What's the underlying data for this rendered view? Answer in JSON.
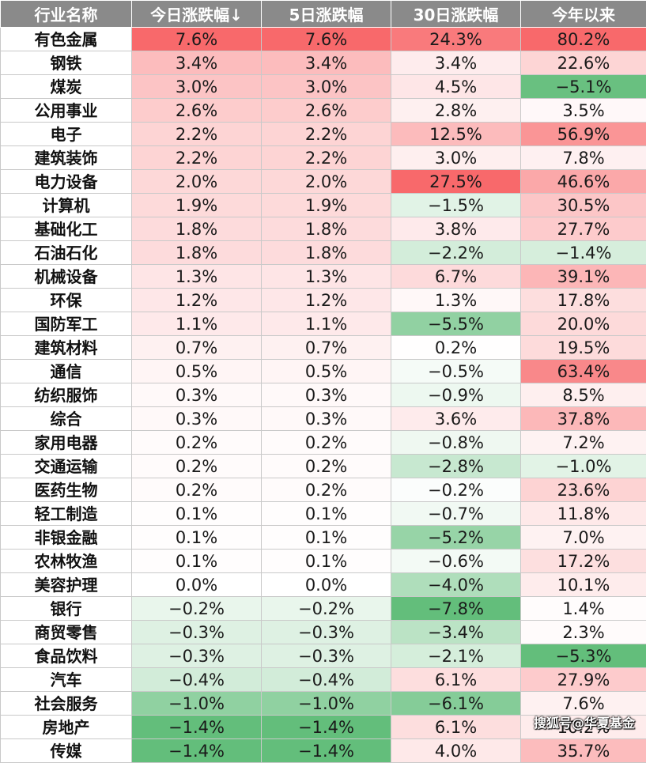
{
  "columns": [
    "行业名称",
    "今日涨跌幅↓",
    "5日涨跌幅",
    "30日涨跌幅",
    "今年以来"
  ],
  "rows": [
    [
      "有色金属",
      "7.6%",
      "7.6%",
      "24.3%",
      "80.2%"
    ],
    [
      "钢铁",
      "3.4%",
      "3.4%",
      "3.4%",
      "22.6%"
    ],
    [
      "煤炭",
      "3.0%",
      "3.0%",
      "4.5%",
      "−5.1%"
    ],
    [
      "公用事业",
      "2.6%",
      "2.6%",
      "2.8%",
      "3.5%"
    ],
    [
      "电子",
      "2.2%",
      "2.2%",
      "12.5%",
      "56.9%"
    ],
    [
      "建筑装饰",
      "2.2%",
      "2.2%",
      "3.0%",
      "7.8%"
    ],
    [
      "电力设备",
      "2.0%",
      "2.0%",
      "27.5%",
      "46.6%"
    ],
    [
      "计算机",
      "1.9%",
      "1.9%",
      "−1.5%",
      "30.5%"
    ],
    [
      "基础化工",
      "1.8%",
      "1.8%",
      "3.8%",
      "27.7%"
    ],
    [
      "石油石化",
      "1.8%",
      "1.8%",
      "−2.2%",
      "−1.4%"
    ],
    [
      "机械设备",
      "1.3%",
      "1.3%",
      "6.7%",
      "39.1%"
    ],
    [
      "环保",
      "1.2%",
      "1.2%",
      "1.3%",
      "17.8%"
    ],
    [
      "国防军工",
      "1.1%",
      "1.1%",
      "−5.5%",
      "20.0%"
    ],
    [
      "建筑材料",
      "0.7%",
      "0.7%",
      "0.2%",
      "19.5%"
    ],
    [
      "通信",
      "0.5%",
      "0.5%",
      "−0.5%",
      "63.4%"
    ],
    [
      "纺织服饰",
      "0.3%",
      "0.3%",
      "−0.9%",
      "8.5%"
    ],
    [
      "综合",
      "0.3%",
      "0.3%",
      "3.6%",
      "37.8%"
    ],
    [
      "家用电器",
      "0.2%",
      "0.2%",
      "−0.8%",
      "7.2%"
    ],
    [
      "交通运输",
      "0.2%",
      "0.2%",
      "−2.8%",
      "−1.0%"
    ],
    [
      "医药生物",
      "0.2%",
      "0.2%",
      "−0.2%",
      "23.6%"
    ],
    [
      "轻工制造",
      "0.1%",
      "0.1%",
      "−0.7%",
      "11.8%"
    ],
    [
      "非银金融",
      "0.1%",
      "0.1%",
      "−5.2%",
      "7.0%"
    ],
    [
      "农林牧渔",
      "0.1%",
      "0.1%",
      "−0.6%",
      "17.2%"
    ],
    [
      "美容护理",
      "0.0%",
      "0.0%",
      "−4.0%",
      "10.1%"
    ],
    [
      "银行",
      "−0.2%",
      "−0.2%",
      "−7.8%",
      "1.4%"
    ],
    [
      "商贸零售",
      "−0.3%",
      "−0.3%",
      "−3.4%",
      "2.3%"
    ],
    [
      "食品饮料",
      "−0.3%",
      "−0.3%",
      "−2.1%",
      "−5.3%"
    ],
    [
      "汽车",
      "−0.4%",
      "−0.4%",
      "6.1%",
      "27.9%"
    ],
    [
      "社会服务",
      "−1.0%",
      "−1.0%",
      "−6.1%",
      "7.6%"
    ],
    [
      "房地产",
      "−1.4%",
      "−1.4%",
      "6.1%",
      "10.2%"
    ],
    [
      "传媒",
      "−1.4%",
      "−1.4%",
      "4.0%",
      "35.7%"
    ]
  ],
  "colors": {
    "header_bg": "#8a8a8a",
    "max_positive": "#f8696b",
    "max_negative": "#63be7b",
    "neutral": "#ffffff"
  },
  "watermark": "搜狐号@华夏基金"
}
